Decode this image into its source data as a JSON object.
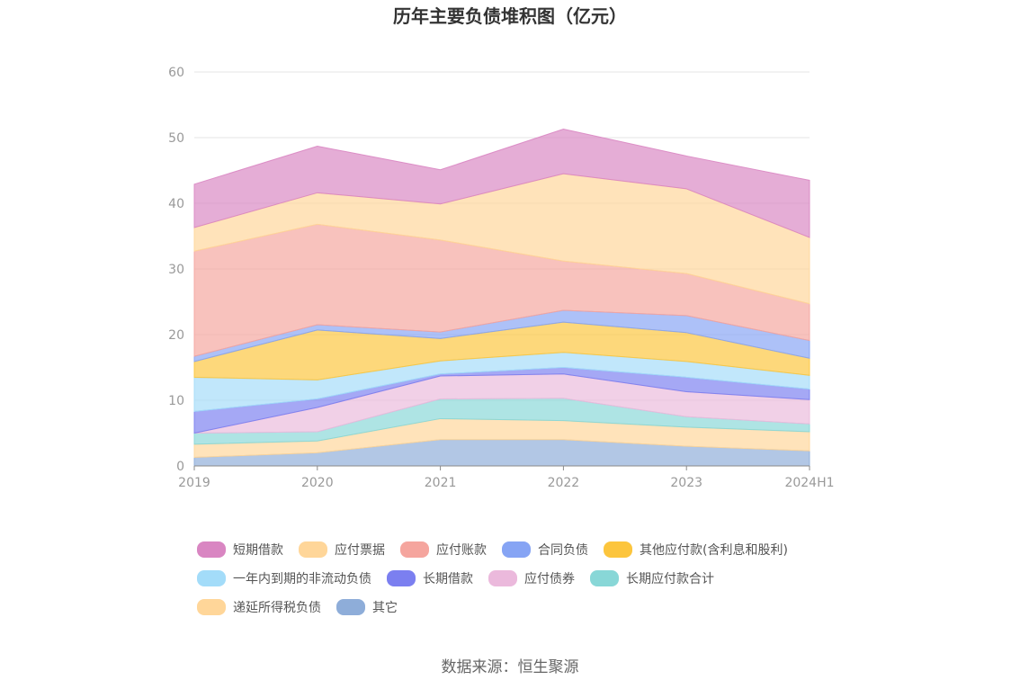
{
  "chart_data": {
    "type": "area",
    "stacked": true,
    "title": "历年主要负债堆积图（亿元）",
    "xlabel": "",
    "ylabel": "",
    "categories": [
      "2019",
      "2020",
      "2021",
      "2022",
      "2023",
      "2024H1"
    ],
    "ylim": [
      0,
      60
    ],
    "yticks": [
      0,
      10,
      20,
      30,
      40,
      50,
      60
    ],
    "grid": true,
    "legend_position": "bottom",
    "series": [
      {
        "name": "其它",
        "color": "#8eadd9",
        "values": [
          1.3,
          2.0,
          4.0,
          4.0,
          3.0,
          2.3
        ]
      },
      {
        "name": "递延所得税负债",
        "color": "#ffd699",
        "values": [
          2.0,
          1.8,
          3.2,
          2.9,
          2.9,
          2.9
        ]
      },
      {
        "name": "长期应付款合计",
        "color": "#88d7d7",
        "values": [
          1.7,
          1.4,
          3.0,
          3.4,
          1.6,
          1.2
        ]
      },
      {
        "name": "应付债券",
        "color": "#ebb9dc",
        "values": [
          0.0,
          3.7,
          3.5,
          3.7,
          3.8,
          3.7
        ]
      },
      {
        "name": "长期借款",
        "color": "#7b7ff0",
        "values": [
          3.3,
          1.3,
          0.3,
          1.0,
          2.2,
          1.6
        ]
      },
      {
        "name": "一年内到期的非流动负债",
        "color": "#a3dcf9",
        "values": [
          5.2,
          2.9,
          2.0,
          2.3,
          2.4,
          2.1
        ]
      },
      {
        "name": "其他应付款(含利息和股利)",
        "color": "#fcc53d",
        "values": [
          2.4,
          7.6,
          3.4,
          4.6,
          4.4,
          2.6
        ]
      },
      {
        "name": "合同负债",
        "color": "#86a4f4",
        "values": [
          0.8,
          0.8,
          1.0,
          1.8,
          2.6,
          2.7
        ]
      },
      {
        "name": "应付账款",
        "color": "#f5a59e",
        "values": [
          16.0,
          15.3,
          14.0,
          7.5,
          6.4,
          5.6
        ]
      },
      {
        "name": "应付票据",
        "color": "#ffd699",
        "values": [
          3.6,
          4.8,
          5.5,
          13.3,
          12.9,
          10.1
        ]
      },
      {
        "name": "短期借款",
        "color": "#d986c2",
        "values": [
          6.6,
          7.1,
          5.2,
          6.8,
          5.0,
          8.7
        ]
      }
    ],
    "legend_order": [
      "短期借款",
      "应付票据",
      "应付账款",
      "合同负债",
      "其他应付款(含利息和股利)",
      "一年内到期的非流动负债",
      "长期借款",
      "应付债券",
      "长期应付款合计",
      "递延所得税负债",
      "其它"
    ]
  },
  "source_text": "数据来源：恒生聚源"
}
